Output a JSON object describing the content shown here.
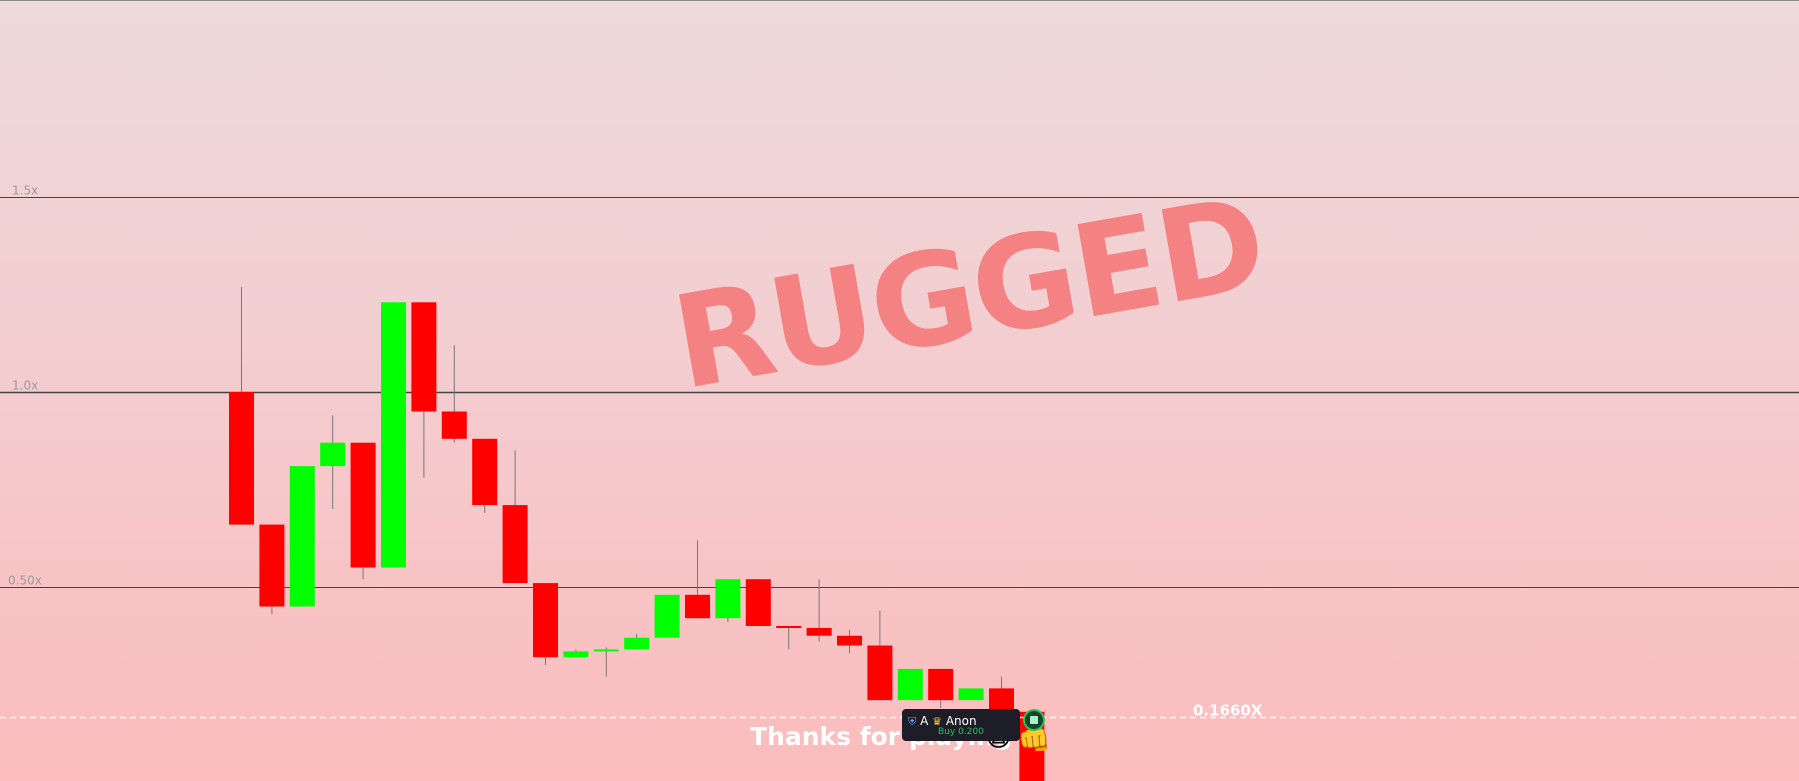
{
  "status_text": "RUGGED",
  "footer": {
    "message": "Thanks for playing",
    "emoji_1": "🙀",
    "emoji_2": "👊"
  },
  "current_multiplier_label": "0.1660X",
  "player_tooltip": {
    "rank_initial": "A",
    "name": "Anon",
    "action": "Buy 0.200"
  },
  "colors": {
    "up": "#00ff00",
    "down": "#ff0000",
    "rugged_text": "#f58282"
  },
  "chart_data": {
    "type": "candlestick",
    "title": "",
    "y_scale": "linear",
    "ylim": [
      0,
      2.0
    ],
    "gridlines": [
      {
        "value": 1.5,
        "label": "1.5x"
      },
      {
        "value": 1.0,
        "label": "1.0x"
      },
      {
        "value": 0.5,
        "label": "0.50x"
      }
    ],
    "current_value": 0.166,
    "candles": [
      {
        "o": 1.0,
        "c": 0.66,
        "h": 1.27,
        "l": 0.66
      },
      {
        "o": 0.66,
        "c": 0.45,
        "h": 0.66,
        "l": 0.43
      },
      {
        "o": 0.45,
        "c": 0.81,
        "h": 0.81,
        "l": 0.45
      },
      {
        "o": 0.81,
        "c": 0.87,
        "h": 0.94,
        "l": 0.7
      },
      {
        "o": 0.87,
        "c": 0.55,
        "h": 0.87,
        "l": 0.52
      },
      {
        "o": 0.55,
        "c": 1.23,
        "h": 1.23,
        "l": 0.55
      },
      {
        "o": 1.23,
        "c": 0.95,
        "h": 1.23,
        "l": 0.78
      },
      {
        "o": 0.95,
        "c": 0.88,
        "h": 1.12,
        "l": 0.87
      },
      {
        "o": 0.88,
        "c": 0.71,
        "h": 0.88,
        "l": 0.69
      },
      {
        "o": 0.71,
        "c": 0.51,
        "h": 0.85,
        "l": 0.51
      },
      {
        "o": 0.51,
        "c": 0.32,
        "h": 0.51,
        "l": 0.3
      },
      {
        "o": 0.32,
        "c": 0.335,
        "h": 0.34,
        "l": 0.32
      },
      {
        "o": 0.335,
        "c": 0.34,
        "h": 0.345,
        "l": 0.27
      },
      {
        "o": 0.34,
        "c": 0.37,
        "h": 0.38,
        "l": 0.34
      },
      {
        "o": 0.37,
        "c": 0.48,
        "h": 0.48,
        "l": 0.37
      },
      {
        "o": 0.48,
        "c": 0.42,
        "h": 0.62,
        "l": 0.42
      },
      {
        "o": 0.42,
        "c": 0.52,
        "h": 0.52,
        "l": 0.41
      },
      {
        "o": 0.52,
        "c": 0.4,
        "h": 0.52,
        "l": 0.4
      },
      {
        "o": 0.4,
        "c": 0.395,
        "h": 0.4,
        "l": 0.34
      },
      {
        "o": 0.395,
        "c": 0.375,
        "h": 0.52,
        "l": 0.36
      },
      {
        "o": 0.375,
        "c": 0.35,
        "h": 0.39,
        "l": 0.33
      },
      {
        "o": 0.35,
        "c": 0.21,
        "h": 0.44,
        "l": 0.21
      },
      {
        "o": 0.21,
        "c": 0.29,
        "h": 0.29,
        "l": 0.21
      },
      {
        "o": 0.29,
        "c": 0.21,
        "h": 0.29,
        "l": 0.19
      },
      {
        "o": 0.21,
        "c": 0.24,
        "h": 0.24,
        "l": 0.21
      },
      {
        "o": 0.24,
        "c": 0.18,
        "h": 0.27,
        "l": 0.17
      },
      {
        "o": 0.18,
        "c": 0.0,
        "h": 0.18,
        "l": 0.0
      }
    ]
  }
}
